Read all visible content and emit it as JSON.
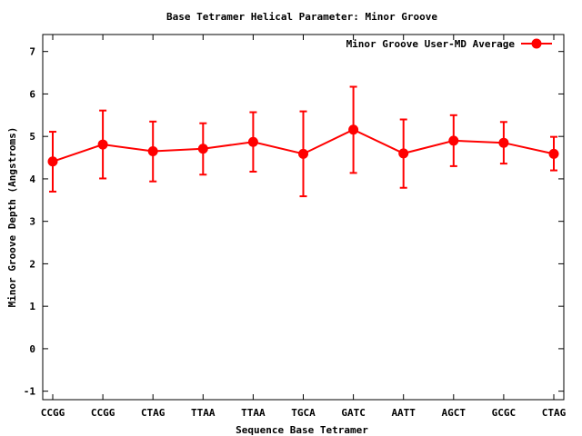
{
  "chart_data": {
    "type": "line",
    "title": "Base Tetramer Helical Parameter: Minor Groove",
    "xlabel": "Sequence Base Tetramer",
    "ylabel": "Minor Groove Depth (Angstroms)",
    "ylim": [
      -1.2,
      7.4
    ],
    "yticks": [
      -1,
      0,
      1,
      2,
      3,
      4,
      5,
      6,
      7
    ],
    "categories": [
      "CCGG",
      "CCGG",
      "CTAG",
      "TTAA",
      "TTAA",
      "TGCA",
      "GATC",
      "AATT",
      "AGCT",
      "GCGC",
      "CTAG"
    ],
    "series": [
      {
        "name": "Minor Groove User-MD Average",
        "color": "#ff0000",
        "values": [
          4.41,
          4.81,
          4.65,
          4.71,
          4.87,
          4.59,
          5.16,
          4.6,
          4.9,
          4.85,
          4.59
        ],
        "error_low": [
          3.7,
          4.01,
          3.94,
          4.1,
          4.17,
          3.59,
          4.14,
          3.79,
          4.3,
          4.36,
          4.2
        ],
        "error_high": [
          5.11,
          5.61,
          5.35,
          5.31,
          5.57,
          5.59,
          6.17,
          5.4,
          5.5,
          5.34,
          4.99
        ]
      }
    ],
    "grid": false,
    "legend_position": "top-right"
  }
}
